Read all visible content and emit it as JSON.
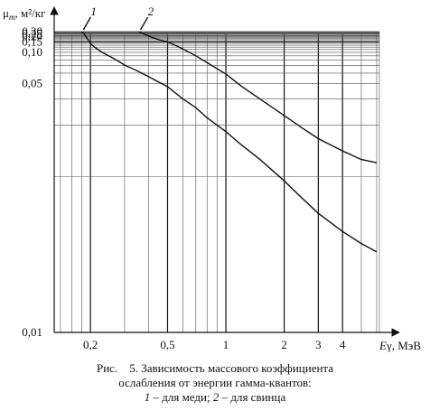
{
  "chart_data": {
    "type": "line",
    "ylabel_symbol": "μ",
    "ylabel_sub": "m",
    "ylabel_unit": ", м²/кг",
    "xlabel_symbol": "E",
    "xlabel_sub": "γ",
    "xlabel_unit": ", МэВ",
    "x_scale": "log",
    "xlim": [
      0.13,
      6.2
    ],
    "ylim": [
      0.01,
      0.3
    ],
    "y_scale": "reciprocal",
    "grid": true,
    "x_ticks": [
      {
        "value": 0.2,
        "label": "0,2"
      },
      {
        "value": 0.5,
        "label": "0,5"
      },
      {
        "value": 1,
        "label": "1"
      },
      {
        "value": 2,
        "label": "2"
      },
      {
        "value": 3,
        "label": "3"
      },
      {
        "value": 4,
        "label": "4"
      }
    ],
    "y_ticks": [
      {
        "value": 0.3,
        "label": "0,30"
      },
      {
        "value": 0.25,
        "label": "0,25"
      },
      {
        "value": 0.2,
        "label": "0,20"
      },
      {
        "value": 0.15,
        "label": "0,15"
      },
      {
        "value": 0.1,
        "label": "0,10"
      },
      {
        "value": 0.05,
        "label": "0,05"
      },
      {
        "value": 0.01,
        "label": "0,01"
      }
    ],
    "series": [
      {
        "name": "1",
        "x": [
          0.18,
          0.185,
          0.19,
          0.195,
          0.2,
          0.21,
          0.23,
          0.26,
          0.3,
          0.35,
          0.4,
          0.5,
          0.6,
          0.7,
          0.8,
          1.0,
          1.2,
          1.5,
          2.0,
          2.5,
          3.0,
          4.0,
          5.0,
          6.0
        ],
        "y": [
          0.3,
          0.25,
          0.2,
          0.165,
          0.14,
          0.12,
          0.1,
          0.085,
          0.071,
          0.0625,
          0.056,
          0.0475,
          0.04,
          0.036,
          0.0322,
          0.0282,
          0.0252,
          0.0225,
          0.0195,
          0.0175,
          0.0162,
          0.0148,
          0.014,
          0.0135
        ]
      },
      {
        "name": "2",
        "x": [
          0.355,
          0.36,
          0.38,
          0.4,
          0.42,
          0.45,
          0.5,
          0.55,
          0.6,
          0.7,
          0.8,
          1.0,
          1.2,
          1.5,
          2.0,
          2.5,
          3.0,
          4.0,
          5.0,
          6.0
        ],
        "y": [
          0.3,
          0.28,
          0.24,
          0.213,
          0.19,
          0.17,
          0.15,
          0.128,
          0.112,
          0.09,
          0.075,
          0.059,
          0.048,
          0.04,
          0.033,
          0.029,
          0.0265,
          0.024,
          0.0225,
          0.022
        ]
      }
    ]
  },
  "caption": {
    "prefix": "Рис.",
    "line1": "5. Зависимость массового коэффициента",
    "line2": "ослабления от энергии гамма-квантов:",
    "line3_num1": "1",
    "line3_text1": " – для меди; ",
    "line3_num2": "2",
    "line3_text2": " – для свинца"
  }
}
